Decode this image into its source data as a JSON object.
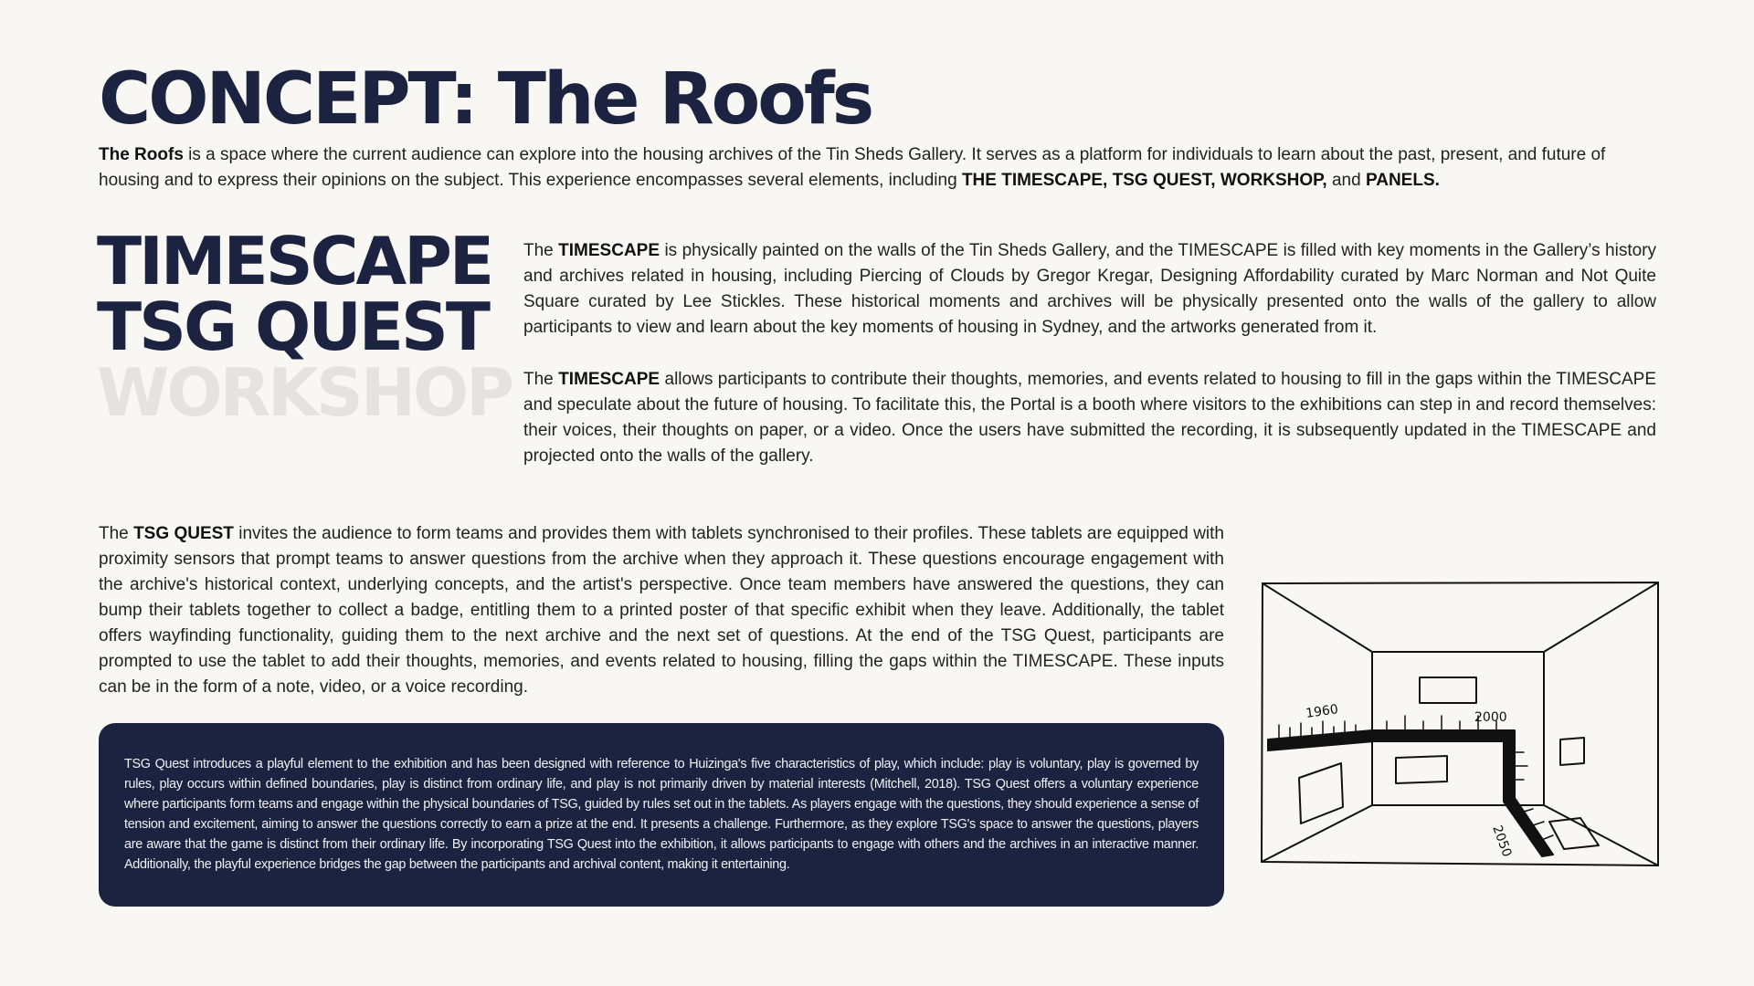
{
  "title": "CONCEPT: The Roofs",
  "intro": {
    "lead": "The Roofs",
    "text": " is a space where the current audience can explore into the housing archives of the Tin Sheds Gallery. It serves as a platform for individuals to learn about the past, present, and future of housing and to express their opinions on the subject. This experience encompasses several elements, including ",
    "elements": "THE TIMESCAPE, TSG QUEST, WORKSHOP,",
    "and": " and ",
    "panels": "PANELS."
  },
  "nav": {
    "items": [
      "TIMESCAPE",
      "TSG QUEST",
      "WORKSHOP"
    ]
  },
  "timescape": {
    "p1": {
      "pre": "The ",
      "bold": "TIMESCAPE",
      "text": " is physically painted on the walls of the Tin Sheds Gallery, and the TIMESCAPE is filled with key moments in the Gallery’s history and archives related in housing, including Piercing of Clouds by Gregor Kregar,  Designing Affordability curated by Marc Norman and Not Quite Square curated by Lee Stickles. These historical moments and archives will be physically presented onto the walls of the gallery to allow participants to view and learn about the key moments of housing in Sydney, and the artworks generated from it."
    },
    "p2": {
      "pre": "The ",
      "bold": "TIMESCAPE",
      "text": " allows participants to contribute their thoughts, memories, and events related to housing to fill in the gaps within the TIMESCAPE and speculate about the future of housing. To facilitate this, the Portal is a booth where visitors to the exhibitions can step in and record themselves: their voices, their thoughts on paper, or a video. Once the users have submitted the recording, it is subsequently updated in the TIMESCAPE and projected onto the walls of the gallery."
    }
  },
  "quest": {
    "pre": "The ",
    "bold": "TSG QUEST",
    "text": " invites the audience to form teams and provides them with tablets synchronised to their profiles. These tablets are equipped with proximity sensors that prompt teams to answer questions from the archive when they approach it. These questions encourage engagement with the archive's historical context, underlying concepts, and the artist's perspective. Once team members have answered the questions, they can bump their tablets together to collect a badge, entitling them to a printed poster of that specific exhibit when they leave. Additionally, the tablet offers wayfinding functionality, guiding them to the next archive and the next set of questions. At the end of the TSG Quest, participants are prompted to use the tablet to add their thoughts, memories, and events related to housing, filling the gaps within the TIMESCAPE. These inputs can be in the form of a note, video, or a voice recording."
  },
  "note": {
    "text": "TSG Quest introduces a playful element to the exhibition and has been designed with reference to Huizinga's five characteristics of play, which include: play is voluntary, play is governed by rules, play occurs within defined boundaries, play is distinct from ordinary life, and play is not primarily driven by material interests (Mitchell, 2018). TSG Quest offers a voluntary experience where participants form teams and engage within the physical boundaries of TSG, guided by rules set out in the tablets. As players engage with the questions, they should experience a sense of tension and excitement, aiming to answer the questions correctly to earn a prize at the end. It presents a challenge. Furthermore, as they explore TSG's space to answer the questions, players are aware that the game is distinct from their ordinary life. By incorporating TSG Quest into the exhibition, it allows participants to engage with others and the archives in an interactive manner. Additionally, the playful experience bridges the gap between the participants and archival content, making it entertaining."
  },
  "sketch": {
    "labels": [
      "1960",
      "2000",
      "2050"
    ]
  },
  "colors": {
    "navy": "#1c2340",
    "background": "#f8f7f3",
    "inactive": "#e4e3e0"
  }
}
